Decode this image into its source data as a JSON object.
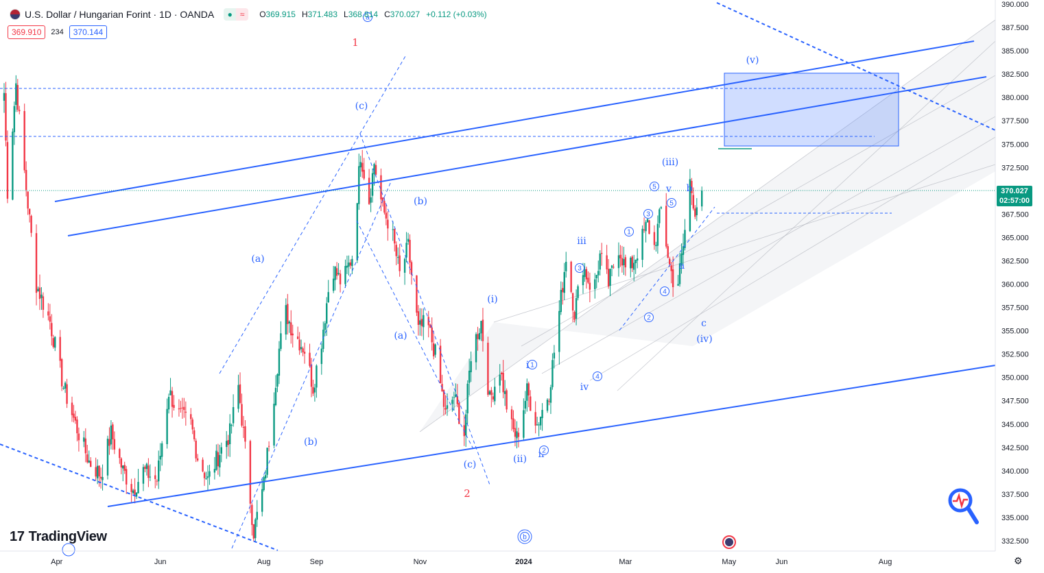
{
  "header": {
    "symbol": "U.S. Dollar / Hungarian Forint · 1D · OANDA",
    "open_label": "O",
    "open": "369.915",
    "high_label": "H",
    "high": "371.483",
    "low_label": "L",
    "low": "368.814",
    "close_label": "C",
    "close": "370.027",
    "change": "+0.112 (+0.03%)",
    "bid": "369.910",
    "spread": "234",
    "ask": "370.144"
  },
  "price_tag": {
    "price": "370.027",
    "countdown": "02:57:00"
  },
  "logo": {
    "text": "TradingView"
  },
  "colors": {
    "up": "#089981",
    "down": "#f23645",
    "drawing": "#2962ff",
    "wave_label": "#2962ff",
    "major_label": "#f23645"
  },
  "chart_data": {
    "type": "candlestick",
    "symbol": "USD/HUF",
    "interval": "1D",
    "y_axis": {
      "ticks": [
        390,
        387.5,
        385,
        382.5,
        380,
        377.5,
        375,
        372.5,
        370,
        367.5,
        365,
        362.5,
        360,
        357.5,
        355,
        352.5,
        350,
        347.5,
        345,
        342.5,
        340,
        337.5,
        335,
        332.5
      ],
      "tick_labels": [
        "390.000",
        "387.500",
        "385.000",
        "382.500",
        "380.000",
        "377.500",
        "375.000",
        "372.500",
        "370.000",
        "367.500",
        "365.000",
        "362.500",
        "360.000",
        "357.500",
        "355.000",
        "352.500",
        "350.000",
        "347.500",
        "345.000",
        "342.500",
        "340.000",
        "337.500",
        "335.000",
        "332.500"
      ],
      "range": [
        331.5,
        390.5
      ]
    },
    "x_axis": {
      "tick_labels": [
        "Apr",
        "Jun",
        "Aug",
        "Sep",
        "Nov",
        "2024",
        "Mar",
        "May",
        "Jun",
        "Aug"
      ]
    },
    "last_price": 370.027,
    "anchor_points": [
      [
        "2023-03-01",
        380.5
      ],
      [
        "2023-03-03",
        370
      ],
      [
        "2023-03-08",
        381.5
      ],
      [
        "2023-03-13",
        372
      ],
      [
        "2023-03-20",
        360
      ],
      [
        "2023-03-28",
        356
      ],
      [
        "2023-04-05",
        349
      ],
      [
        "2023-04-12",
        345
      ],
      [
        "2023-04-20",
        341
      ],
      [
        "2023-04-27",
        339.5
      ],
      [
        "2023-05-03",
        344
      ],
      [
        "2023-05-10",
        340
      ],
      [
        "2023-05-16",
        338
      ],
      [
        "2023-05-22",
        340
      ],
      [
        "2023-05-30",
        339
      ],
      [
        "2023-06-06",
        348.5
      ],
      [
        "2023-06-12",
        346
      ],
      [
        "2023-06-19",
        345
      ],
      [
        "2023-06-23",
        341.5
      ],
      [
        "2023-06-29",
        339
      ],
      [
        "2023-07-06",
        342
      ],
      [
        "2023-07-12",
        344
      ],
      [
        "2023-07-17",
        349
      ],
      [
        "2023-07-20",
        344
      ],
      [
        "2023-07-26",
        333.5
      ],
      [
        "2023-08-01",
        338.5
      ],
      [
        "2023-08-05",
        345
      ],
      [
        "2023-08-10",
        353
      ],
      [
        "2023-08-14",
        357
      ],
      [
        "2023-08-18",
        355
      ],
      [
        "2023-08-25",
        353
      ],
      [
        "2023-08-30",
        349
      ],
      [
        "2023-09-04",
        354
      ],
      [
        "2023-09-10",
        362
      ],
      [
        "2023-09-16",
        360
      ],
      [
        "2023-09-22",
        363
      ],
      [
        "2023-09-27",
        374
      ],
      [
        "2023-10-02",
        369
      ],
      [
        "2023-10-05",
        373
      ],
      [
        "2023-10-10",
        368
      ],
      [
        "2023-10-15",
        366
      ],
      [
        "2023-10-20",
        361
      ],
      [
        "2023-10-25",
        364
      ],
      [
        "2023-10-31",
        355
      ],
      [
        "2023-11-05",
        356
      ],
      [
        "2023-11-10",
        352.5
      ],
      [
        "2023-11-16",
        346
      ],
      [
        "2023-11-21",
        348
      ],
      [
        "2023-11-27",
        344
      ],
      [
        "2023-12-01",
        352.5
      ],
      [
        "2023-12-07",
        356
      ],
      [
        "2023-12-12",
        347.5
      ],
      [
        "2023-12-18",
        351
      ],
      [
        "2023-12-24",
        345
      ],
      [
        "2023-12-28",
        343.5
      ],
      [
        "2024-01-03",
        348.5
      ],
      [
        "2024-01-09",
        345
      ],
      [
        "2024-01-16",
        348.5
      ],
      [
        "2024-01-22",
        357
      ],
      [
        "2024-01-26",
        363
      ],
      [
        "2024-01-31",
        357
      ],
      [
        "2024-02-05",
        362
      ],
      [
        "2024-02-11",
        359
      ],
      [
        "2024-02-15",
        363
      ],
      [
        "2024-02-20",
        360
      ],
      [
        "2024-02-26",
        364
      ],
      [
        "2024-03-02",
        361
      ],
      [
        "2024-03-07",
        363
      ],
      [
        "2024-03-14",
        366.5
      ],
      [
        "2024-03-18",
        364
      ],
      [
        "2024-03-22",
        368
      ],
      [
        "2024-03-27",
        362
      ],
      [
        "2024-03-31",
        359
      ],
      [
        "2024-04-04",
        364
      ],
      [
        "2024-04-08",
        371
      ],
      [
        "2024-04-11",
        368
      ],
      [
        "2024-04-15",
        370
      ]
    ],
    "annotations": {
      "wave_labels": [
        "1",
        "2",
        "(a)",
        "(b)",
        "(c)",
        "(a)",
        "(b)",
        "(c)",
        "(i)",
        "(ii)",
        "(iii)",
        "(iv)",
        "(v)",
        "i",
        "ii",
        "iii",
        "iv",
        "v",
        "a",
        "b",
        "c",
        "b"
      ],
      "circled_labels": [
        "1",
        "2",
        "3",
        "4",
        "5",
        "a",
        "b"
      ],
      "target_zone": {
        "from": 374.8,
        "to": 382.6
      }
    }
  }
}
